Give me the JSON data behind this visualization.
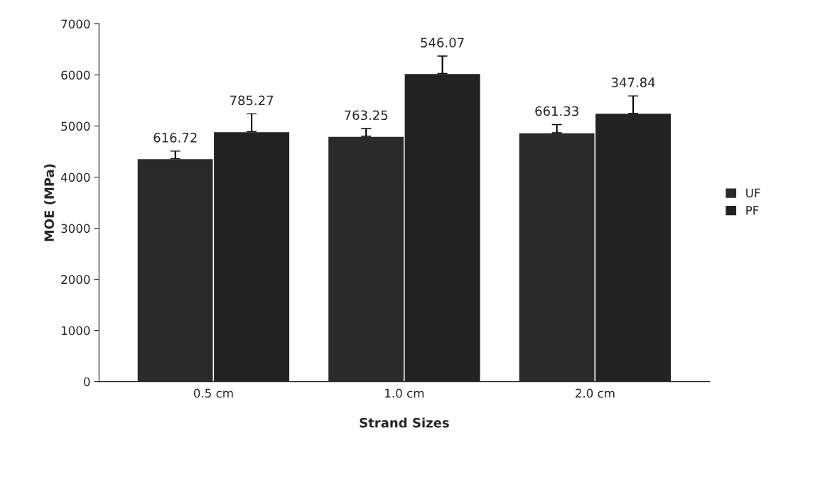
{
  "chart_data": {
    "type": "bar",
    "xlabel": "Strand Sizes",
    "ylabel": "MOE (MPa)",
    "categories": [
      "0.5 cm",
      "1.0 cm",
      "2.0 cm"
    ],
    "series": [
      {
        "name": "UF",
        "color": "#2a2a2a",
        "values": [
          4360,
          4800,
          4870
        ],
        "errors": [
          150,
          150,
          160
        ]
      },
      {
        "name": "PF",
        "color": "#222222",
        "values": [
          4890,
          6030,
          5250
        ],
        "errors": [
          350,
          340,
          340
        ]
      }
    ],
    "annotations": [
      "616.72",
      "785.27",
      "763.25",
      "546.07",
      "661.33",
      "347.84"
    ],
    "ylim": [
      0,
      7000
    ],
    "yticks": [
      0,
      1000,
      2000,
      3000,
      4000,
      5000,
      6000,
      7000
    ],
    "grid": false,
    "legend": "right"
  }
}
